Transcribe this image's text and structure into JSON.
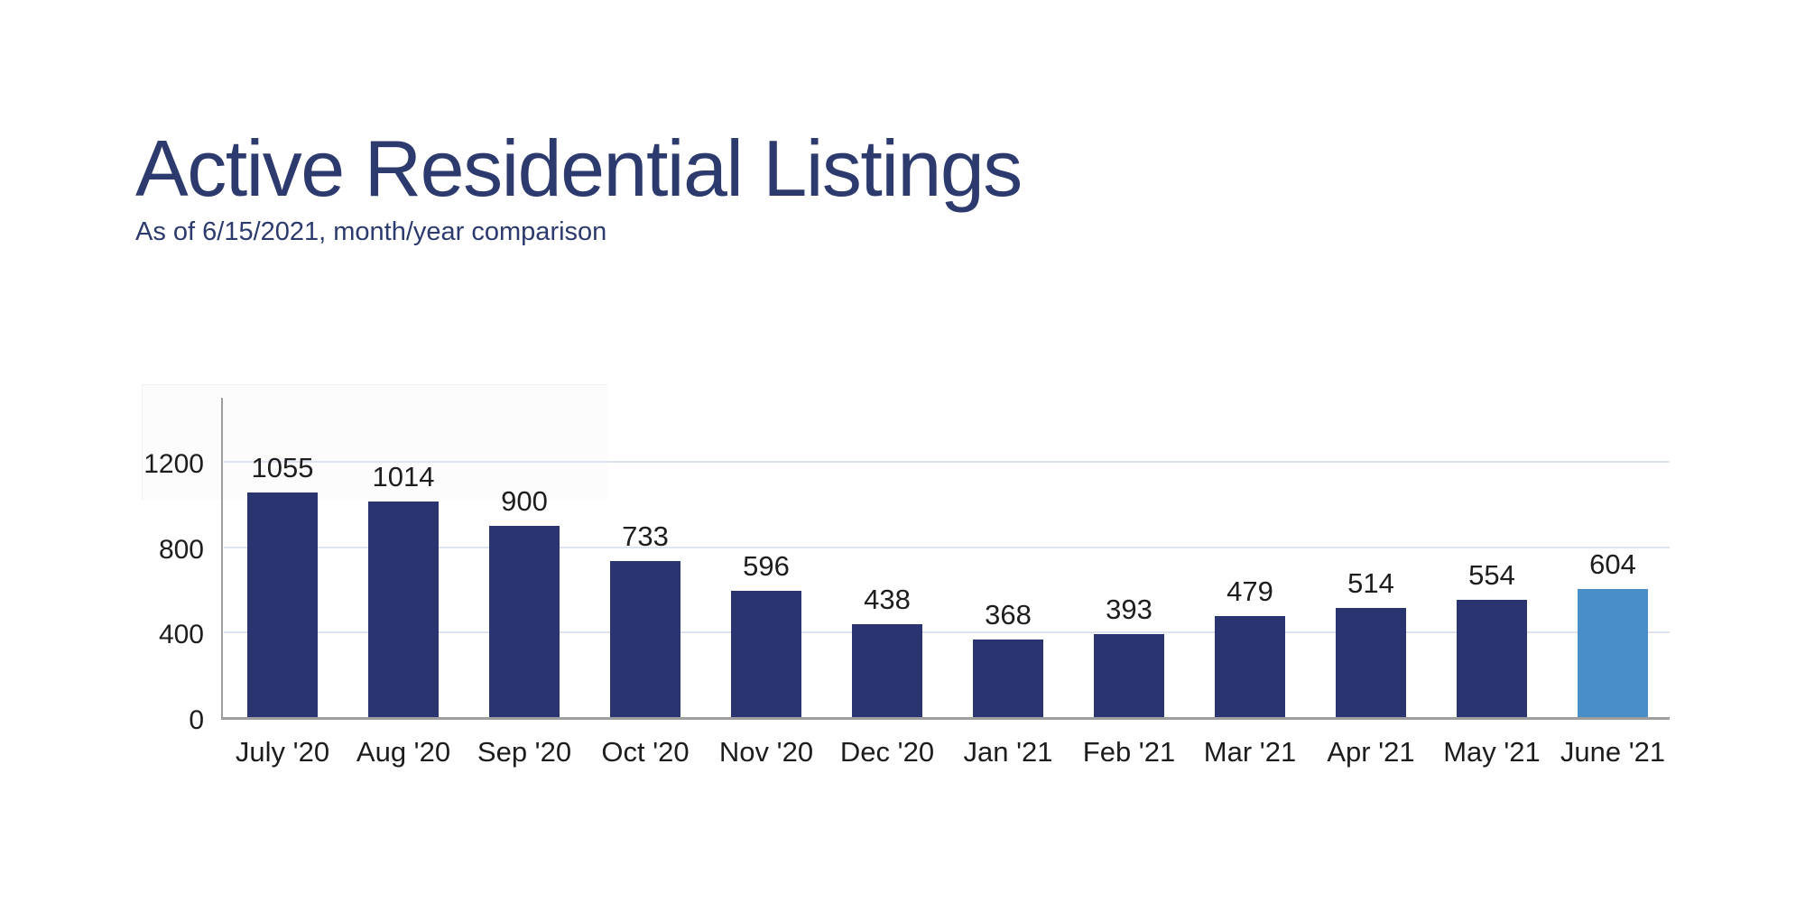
{
  "header": {
    "title": "Active Residential Listings",
    "subtitle": "As of 6/15/2021, month/year comparison"
  },
  "colors": {
    "title_text": "#2c3a6e",
    "bar_default": "#293470",
    "bar_highlight": "#4a8ec9",
    "gridline": "#dde3ef",
    "axis": "#9e9e9e",
    "label_text": "#1d1d1d"
  },
  "chart_data": {
    "type": "bar",
    "title": "Active Residential Listings",
    "subtitle": "As of 6/15/2021, month/year comparison",
    "categories": [
      "July '20",
      "Aug '20",
      "Sep '20",
      "Oct '20",
      "Nov '20",
      "Dec '20",
      "Jan '21",
      "Feb '21",
      "Mar '21",
      "Apr '21",
      "May '21",
      "June '21"
    ],
    "values": [
      1055,
      1014,
      900,
      733,
      596,
      438,
      368,
      393,
      479,
      514,
      554,
      604
    ],
    "highlight_index": 11,
    "data_labels_shown": true,
    "yticks": [
      0,
      400,
      800,
      1200
    ],
    "ylim": [
      0,
      1480
    ],
    "grid": true,
    "legend": false,
    "xlabel": "",
    "ylabel": ""
  }
}
